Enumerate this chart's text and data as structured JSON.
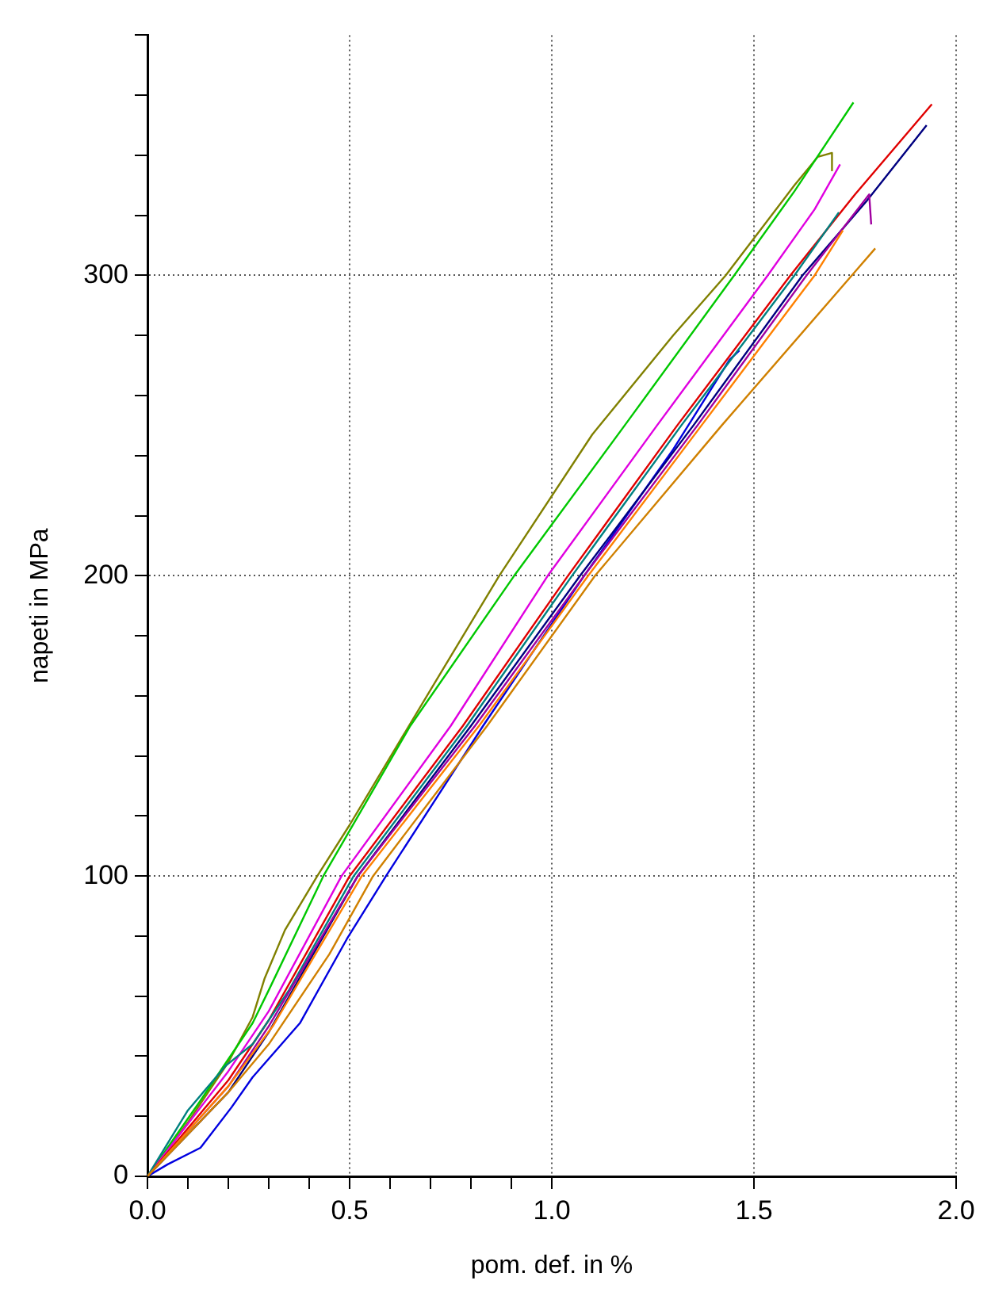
{
  "chart_data": {
    "type": "line",
    "xlabel": "pom. def. in %",
    "ylabel": "napeti in MPa",
    "xlim": [
      0,
      2
    ],
    "ylim": [
      0,
      380
    ],
    "xticks": [
      {
        "value": 0,
        "label": "0.0"
      },
      {
        "value": 0.1,
        "label": null
      },
      {
        "value": 0.2,
        "label": null
      },
      {
        "value": 0.3,
        "label": null
      },
      {
        "value": 0.4,
        "label": null
      },
      {
        "value": 0.5,
        "label": "0.5"
      },
      {
        "value": 0.6,
        "label": null
      },
      {
        "value": 0.7,
        "label": null
      },
      {
        "value": 0.8,
        "label": null
      },
      {
        "value": 0.9,
        "label": null
      },
      {
        "value": 1,
        "label": "1.0"
      },
      {
        "value": 1.5,
        "label": "1.5"
      },
      {
        "value": 2,
        "label": "2.0"
      }
    ],
    "yticks": [
      0,
      {
        "value": 20,
        "label": null
      },
      {
        "value": 40,
        "label": null
      },
      {
        "value": 60,
        "label": null
      },
      {
        "value": 80,
        "label": null
      },
      100,
      {
        "value": 120,
        "label": null
      },
      {
        "value": 140,
        "label": null
      },
      {
        "value": 160,
        "label": null
      },
      {
        "value": 180,
        "label": null
      },
      200,
      {
        "value": 220,
        "label": null
      },
      {
        "value": 240,
        "label": null
      },
      {
        "value": 260,
        "label": null
      },
      {
        "value": 280,
        "label": null
      },
      300,
      {
        "value": 320,
        "label": null
      },
      {
        "value": 340,
        "label": null
      },
      {
        "value": 360,
        "label": null
      },
      {
        "value": 380,
        "label": null
      }
    ],
    "grid": true,
    "legend": false,
    "marker": "none",
    "line_style": "solid",
    "series": [
      {
        "color": "#d08000",
        "x": [
          0,
          0.2,
          0.3,
          0.45,
          0.558,
          0.84,
          1.107,
          1.42,
          1.742,
          1.8
        ],
        "values": [
          0,
          28,
          44,
          74,
          100,
          150,
          200,
          250,
          300,
          309
        ]
      },
      {
        "color": "#ff8000",
        "x": [
          0,
          0.2,
          0.31,
          0.53,
          0.82,
          1.09,
          1.37,
          1.65,
          1.72
        ],
        "values": [
          0,
          30,
          50,
          100,
          150,
          200,
          250,
          300,
          315
        ]
      },
      {
        "color": "#a000a0",
        "x": [
          0,
          0.2,
          0.3,
          0.52,
          0.81,
          1.08,
          1.36,
          1.63,
          1.785,
          1.79
        ],
        "values": [
          0,
          30,
          50,
          100,
          150,
          200,
          250,
          300,
          327,
          317
        ]
      },
      {
        "color": "#008080",
        "x": [
          0,
          0.1,
          0.195,
          0.26,
          0.35,
          0.51,
          0.79,
          1.05,
          1.32,
          1.6,
          1.71
        ],
        "values": [
          0,
          22,
          37,
          44,
          62,
          100,
          150,
          200,
          250,
          300,
          321
        ]
      },
      {
        "color": "#000080",
        "x": [
          0,
          0.2,
          0.3,
          0.52,
          0.8,
          1.07,
          1.35,
          1.62,
          1.78,
          1.927
        ],
        "values": [
          0,
          28,
          48,
          100,
          150,
          200,
          250,
          300,
          325,
          350
        ]
      },
      {
        "color": "#0000e0",
        "x": [
          0,
          0.05,
          0.131,
          0.208,
          0.26,
          0.377,
          0.493,
          0.59,
          0.83,
          1.08,
          1.3,
          1.44,
          1.464
        ],
        "values": [
          0,
          4,
          9.5,
          23,
          33,
          51,
          79,
          100,
          150,
          200,
          242,
          272,
          275
        ]
      },
      {
        "color": "#e00000",
        "x": [
          0,
          0.2,
          0.3,
          0.5,
          0.78,
          1.04,
          1.31,
          1.59,
          1.75,
          1.94
        ],
        "values": [
          0,
          32,
          52,
          100,
          150,
          200,
          250,
          300,
          327,
          357
        ]
      },
      {
        "color": "#e000e0",
        "x": [
          0,
          0.2,
          0.3,
          0.48,
          0.75,
          0.99,
          1.26,
          1.534,
          1.65,
          1.713
        ],
        "values": [
          0,
          35,
          55,
          100,
          150,
          200,
          250,
          300,
          322,
          337
        ]
      },
      {
        "color": "#00c800",
        "x": [
          0,
          0.13,
          0.26,
          0.3,
          0.435,
          0.65,
          0.907,
          1.18,
          1.451,
          1.6,
          1.746
        ],
        "values": [
          0,
          25,
          51,
          62,
          100,
          150,
          200,
          250,
          300,
          328,
          357.6
        ]
      },
      {
        "color": "#808000",
        "x": [
          0,
          0.1,
          0.2,
          0.26,
          0.29,
          0.34,
          0.42,
          0.5,
          0.7,
          0.87,
          1.1,
          1.3,
          1.43,
          1.6,
          1.658,
          1.693,
          1.693
        ],
        "values": [
          0,
          18,
          38,
          53,
          66,
          82,
          100,
          117,
          162,
          200,
          247,
          280,
          300,
          330,
          339.5,
          340.8,
          335
        ]
      }
    ]
  }
}
